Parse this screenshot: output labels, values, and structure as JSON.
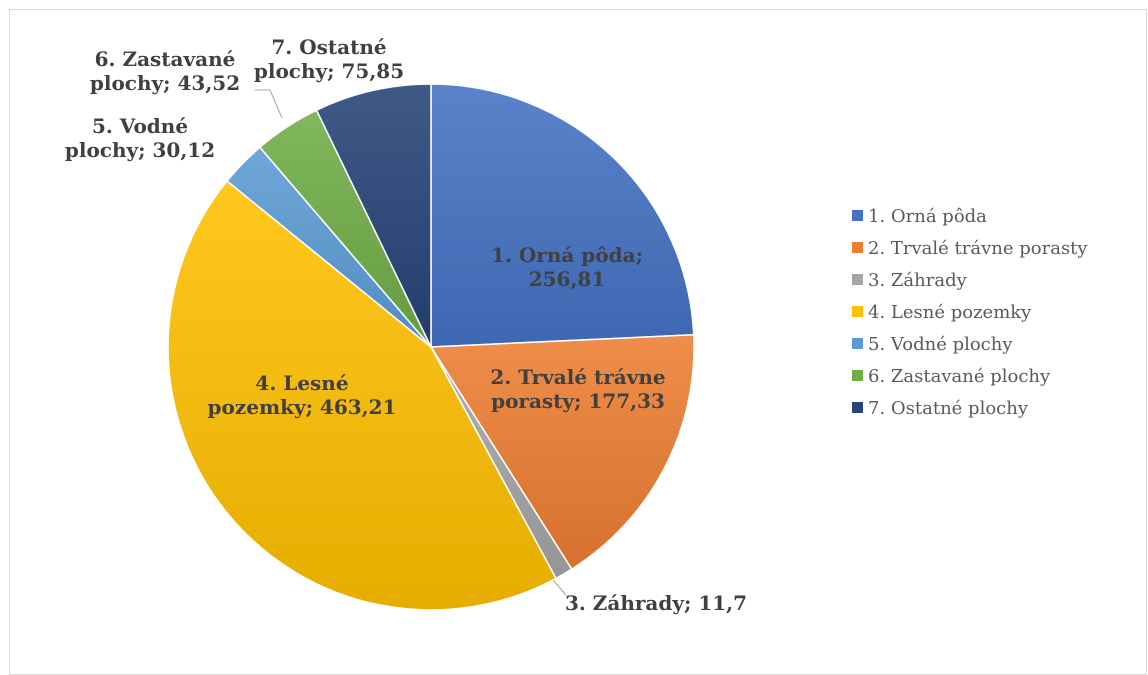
{
  "chart_data": {
    "type": "pie",
    "title": "",
    "legend_position": "right",
    "slices": [
      {
        "label": "1. Orná pôda",
        "value": 256.81,
        "value_text": "256,81",
        "label_lines": [
          "1. Orná pôda;",
          "256,81"
        ],
        "color": "#4472C4"
      },
      {
        "label": "2. Trvalé trávne porasty",
        "value": 177.33,
        "value_text": "177,33",
        "label_lines": [
          "2. Trvalé trávne",
          "porasty; 177,33"
        ],
        "color": "#ED7D31"
      },
      {
        "label": "3. Záhrady",
        "value": 11.7,
        "value_text": "11,7",
        "label_lines": [
          "3. Záhrady; 11,7"
        ],
        "color": "#A5A5A5"
      },
      {
        "label": "4. Lesné pozemky",
        "value": 463.21,
        "value_text": "463,21",
        "label_lines": [
          "4. Lesné",
          "pozemky; 463,21"
        ],
        "color": "#FFC000"
      },
      {
        "label": "5. Vodné plochy",
        "value": 30.12,
        "value_text": "30,12",
        "label_lines": [
          "5. Vodné",
          "plochy; 30,12"
        ],
        "color": "#5B9BD5"
      },
      {
        "label": "6. Zastavané plochy",
        "value": 43.52,
        "value_text": "43,52",
        "label_lines": [
          "6. Zastavané",
          "plochy; 43,52"
        ],
        "color": "#70AD47"
      },
      {
        "label": "7. Ostatné plochy",
        "value": 75.85,
        "value_text": "75,85",
        "label_lines": [
          "7. Ostatné",
          "plochy; 75,85"
        ],
        "color": "#264478"
      }
    ]
  }
}
